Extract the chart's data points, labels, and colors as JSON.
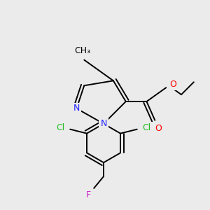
{
  "bg_color": "#ebebeb",
  "atom_colors": {
    "N": "#2222ff",
    "O": "#ff0000",
    "Cl": "#22bb22",
    "F": "#cc22cc",
    "C": "#000000"
  },
  "bond_color": "#000000",
  "bond_lw": 1.4
}
